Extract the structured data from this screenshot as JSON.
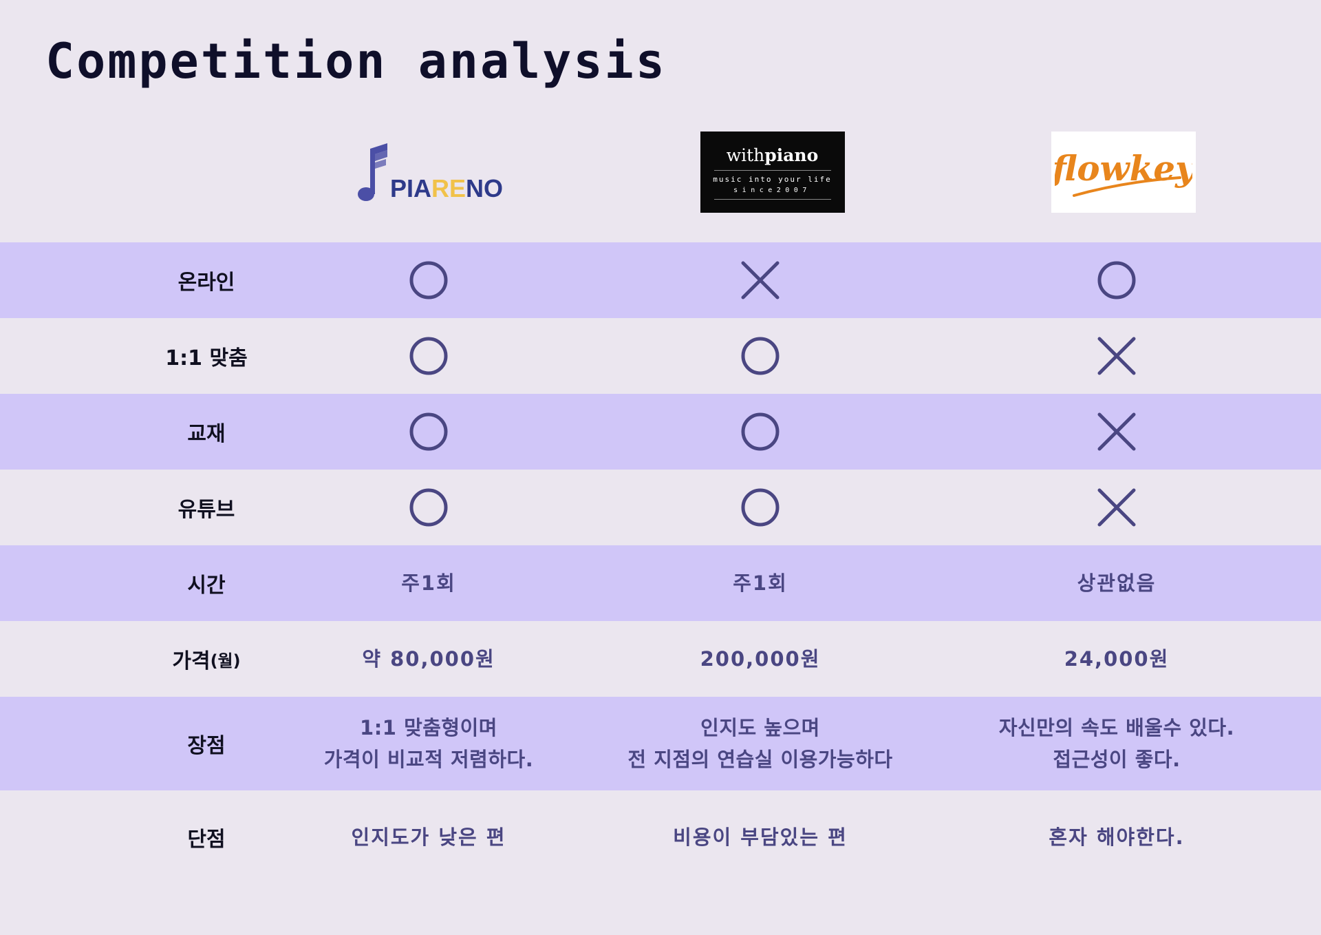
{
  "title": "Competition analysis",
  "competitors": [
    {
      "name": "PIARENO",
      "logo_parts": [
        "PIA",
        "RE",
        "NO"
      ]
    },
    {
      "name": "withpiano",
      "logo_prefix": "with",
      "logo_bold": "piano",
      "tagline": "music into your life",
      "since": "since2007"
    },
    {
      "name": "flowkey"
    }
  ],
  "colors": {
    "background": "#ebe6ef",
    "band": "#d0c6f8",
    "mark": "#4a4682",
    "piareno_blue": "#2e3a8a",
    "piareno_yellow": "#f1c24a",
    "flowkey_orange": "#e8851c"
  },
  "rows": [
    {
      "label": "온라인",
      "type": "mark",
      "values": [
        "O",
        "X",
        "O"
      ]
    },
    {
      "label": "1:1 맞춤",
      "type": "mark",
      "values": [
        "O",
        "O",
        "X"
      ]
    },
    {
      "label": "교재",
      "type": "mark",
      "values": [
        "O",
        "O",
        "X"
      ]
    },
    {
      "label": "유튜브",
      "type": "mark",
      "values": [
        "O",
        "O",
        "X"
      ]
    },
    {
      "label": "시간",
      "type": "text",
      "values": [
        "주1회",
        "주1회",
        "상관없음"
      ]
    },
    {
      "label": "가격",
      "label_suffix": "(월)",
      "type": "text",
      "values": [
        "약 80,000원",
        "200,000원",
        "24,000원"
      ]
    },
    {
      "label": "장점",
      "type": "text2",
      "values": [
        [
          "1:1 맞춤형이며",
          "가격이 비교적 저렴하다."
        ],
        [
          "인지도 높으며",
          "전 지점의 연습실 이용가능하다"
        ],
        [
          "자신만의 속도 배울수 있다.",
          "접근성이 좋다."
        ]
      ]
    },
    {
      "label": "단점",
      "type": "text",
      "values": [
        "인지도가 낮은 편",
        "비용이 부담있는 편",
        "혼자 해야한다."
      ]
    }
  ],
  "icons": {
    "circle": "circle-mark-icon",
    "cross": "x-mark-icon"
  }
}
